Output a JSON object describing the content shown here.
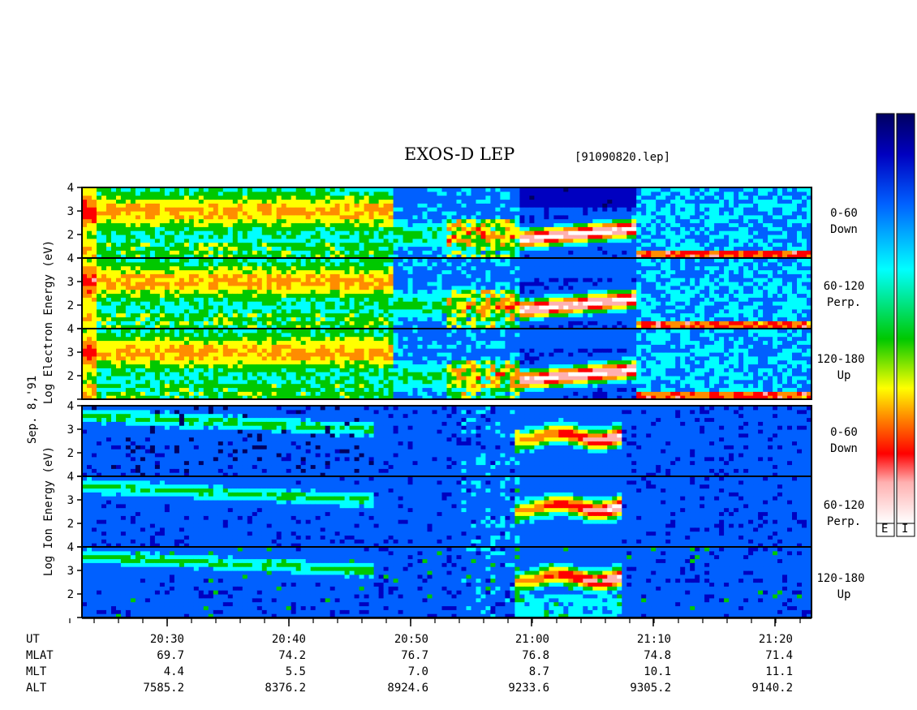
{
  "header": {
    "title": "EXOS-D LEP",
    "file": "[91090820.lep]"
  },
  "colorbars": {
    "labels": [
      "E",
      "I"
    ]
  },
  "chart_data": {
    "type": "heatmap",
    "title": "EXOS-D LEP",
    "date_label": "Sep. 8,'91",
    "electron_ylabel": "Log Electron Energy (eV)",
    "ion_ylabel": "Log Ion Energy (eV)",
    "ylim": [
      1,
      4
    ],
    "ytick_labels": [
      "2",
      "3",
      "4"
    ],
    "xtick_labels": [
      "20:30",
      "20:40",
      "20:50",
      "21:00",
      "21:10",
      "21:20"
    ],
    "panels": [
      {
        "species": "electron",
        "pitch": "0-60",
        "direction": "Down"
      },
      {
        "species": "electron",
        "pitch": "60-120",
        "direction": "Perp."
      },
      {
        "species": "electron",
        "pitch": "120-180",
        "direction": "Up"
      },
      {
        "species": "ion",
        "pitch": "0-60",
        "direction": "Down"
      },
      {
        "species": "ion",
        "pitch": "60-120",
        "direction": "Perp."
      },
      {
        "species": "ion",
        "pitch": "120-180",
        "direction": "Up"
      }
    ],
    "orbit_table": {
      "row_labels": [
        "UT",
        "MLAT",
        "MLT",
        "ALT"
      ],
      "columns": [
        {
          "ut": "20:30",
          "mlat": "69.7",
          "mlt": "4.4",
          "alt": "7585.2"
        },
        {
          "ut": "20:40",
          "mlat": "74.2",
          "mlt": "5.5",
          "alt": "8376.2"
        },
        {
          "ut": "20:50",
          "mlat": "76.7",
          "mlt": "7.0",
          "alt": "8924.6"
        },
        {
          "ut": "21:00",
          "mlat": "76.8",
          "mlt": "8.7",
          "alt": "9233.6"
        },
        {
          "ut": "21:10",
          "mlat": "74.8",
          "mlt": "10.1",
          "alt": "9305.2"
        },
        {
          "ut": "21:20",
          "mlat": "71.4",
          "mlt": "11.1",
          "alt": "9140.2"
        }
      ]
    },
    "grid": false,
    "colors": {
      "electron_scale": [
        "#ffffff",
        "#ffb0b0",
        "#ff0000",
        "#ff8c00",
        "#ffff00",
        "#00c800",
        "#00ffff",
        "#0060ff",
        "#0000c0",
        "#000060"
      ],
      "ion_scale": [
        "#ffffff",
        "#ffb0b0",
        "#ff0000",
        "#ff8c00",
        "#ffff00",
        "#00c800",
        "#00ffff",
        "#0060ff",
        "#0000c0",
        "#000060"
      ]
    }
  }
}
